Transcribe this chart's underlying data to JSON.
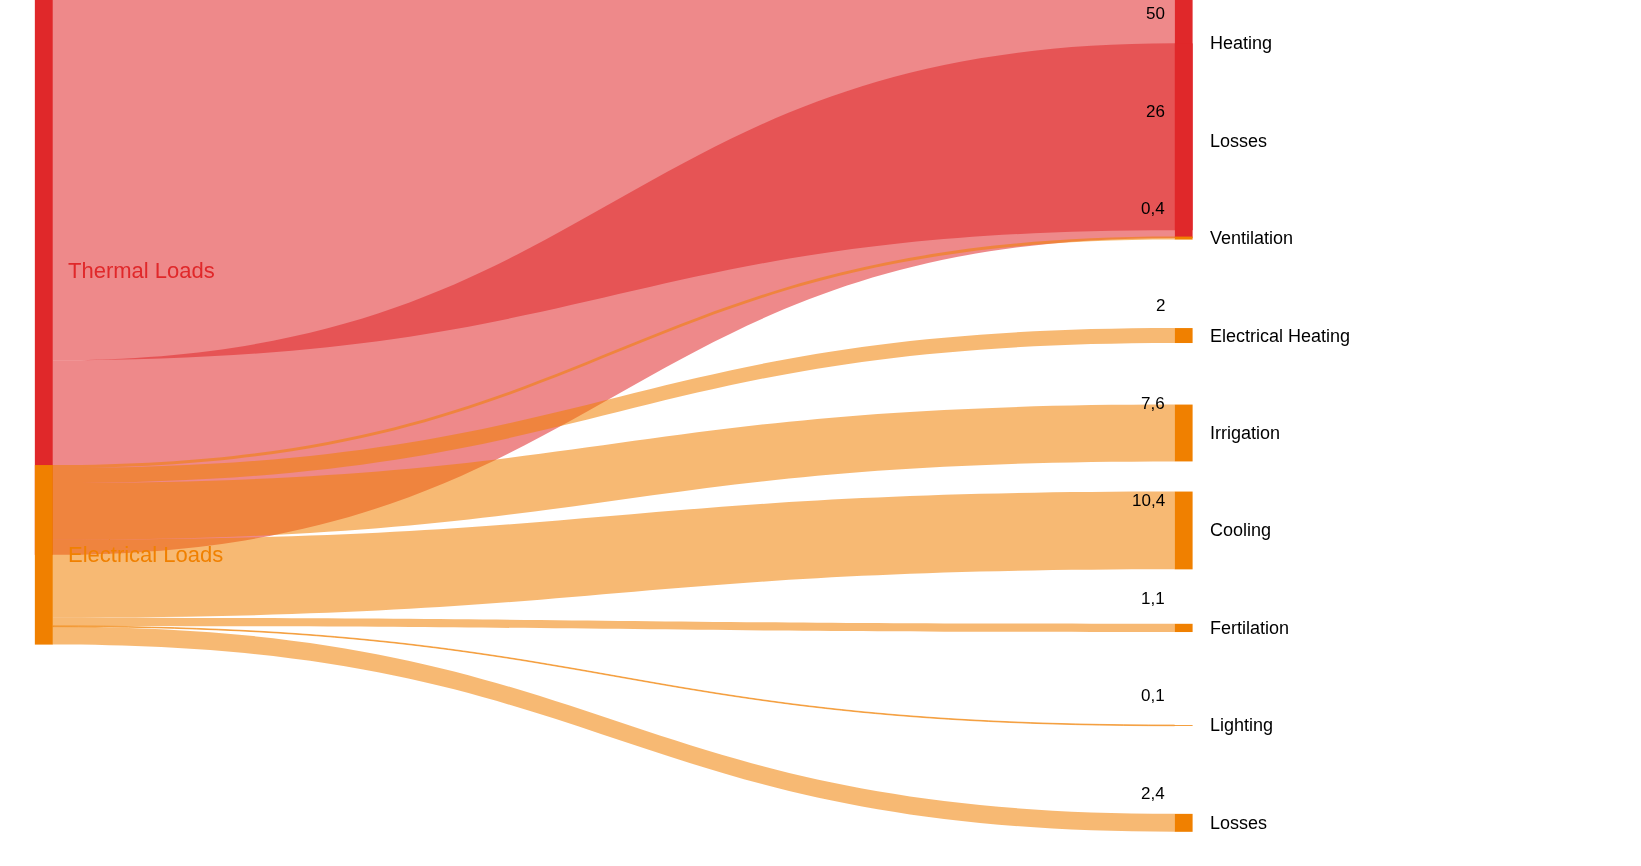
{
  "chart_data": {
    "type": "other",
    "categories": [
      "Heating",
      "Losses",
      "Ventilation",
      "Electrical Heating",
      "Irrigation",
      "Cooling",
      "Fertilation",
      "Lighting",
      "Losses"
    ],
    "series": [
      {
        "name": "Thermal Loads",
        "color": "#e0282a",
        "values": [
          50,
          26,
          null,
          null,
          null,
          null,
          null,
          null,
          null
        ],
        "value_labels": [
          "50",
          "26",
          null,
          null,
          null,
          null,
          null,
          null,
          null
        ]
      },
      {
        "name": "Electrical Loads",
        "color": "#f08000",
        "values": [
          null,
          null,
          0.4,
          2,
          7.6,
          10.4,
          1.1,
          0.1,
          2.4
        ],
        "value_labels": [
          null,
          null,
          "0,4",
          "2",
          "7,6",
          "10,4",
          "1,1",
          "0,1",
          "2,4"
        ]
      }
    ]
  }
}
